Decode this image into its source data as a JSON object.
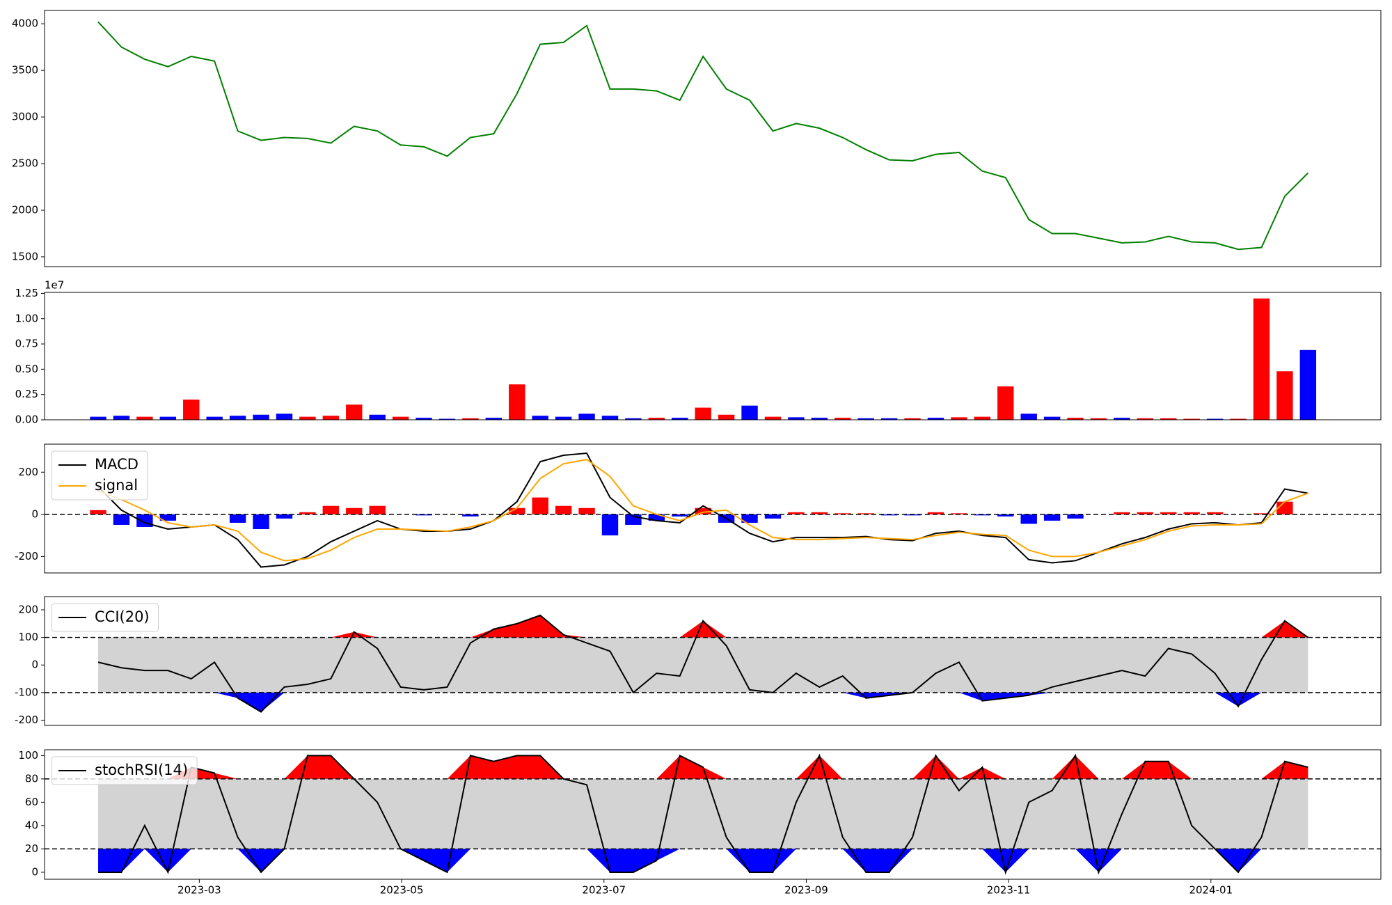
{
  "chart_data": [
    {
      "type": "line",
      "x": [
        2,
        2.23,
        2.46,
        2.69,
        2.92,
        3.15,
        3.38,
        3.61,
        3.84,
        4.07,
        4.3,
        4.53,
        4.76,
        4.99,
        5.22,
        5.45,
        5.68,
        5.91,
        6.14,
        6.37,
        6.6,
        6.83,
        7.06,
        7.29,
        7.52,
        7.75,
        7.98,
        8.21,
        8.44,
        8.67,
        8.9,
        9.13,
        9.36,
        9.59,
        9.82,
        10.05,
        10.28,
        10.51,
        10.74,
        10.97,
        11.2,
        11.43,
        11.66,
        11.89,
        12.12,
        12.35,
        12.58,
        12.81,
        13.04,
        13.27,
        13.5,
        13.73,
        13.96
      ],
      "xlim": [
        1.47,
        14.68
      ],
      "ylim": [
        1395,
        4143
      ],
      "yticks": [
        1500,
        2000,
        2500,
        3000,
        3500,
        4000
      ],
      "series": [
        {
          "color": "green",
          "values": [
            4020,
            3750,
            3620,
            3540,
            3650,
            3600,
            2850,
            2750,
            2780,
            2770,
            2720,
            2900,
            2850,
            2700,
            2680,
            2580,
            2780,
            2820,
            3250,
            3780,
            3800,
            3980,
            3300,
            3300,
            3280,
            3180,
            3650,
            3300,
            3180,
            2850,
            2930,
            2880,
            2780,
            2650,
            2540,
            2530,
            2600,
            2620,
            2420,
            2350,
            1900,
            1750,
            1750,
            1700,
            1650,
            1660,
            1720,
            1660,
            1650,
            1580,
            1600,
            2150,
            2400
          ]
        }
      ]
    },
    {
      "type": "bar",
      "x": [
        2,
        2.23,
        2.46,
        2.69,
        2.92,
        3.15,
        3.38,
        3.61,
        3.84,
        4.07,
        4.3,
        4.53,
        4.76,
        4.99,
        5.22,
        5.45,
        5.68,
        5.91,
        6.14,
        6.37,
        6.6,
        6.83,
        7.06,
        7.29,
        7.52,
        7.75,
        7.98,
        8.21,
        8.44,
        8.67,
        8.9,
        9.13,
        9.36,
        9.59,
        9.82,
        10.05,
        10.28,
        10.51,
        10.74,
        10.97,
        11.2,
        11.43,
        11.66,
        11.89,
        12.12,
        12.35,
        12.58,
        12.81,
        13.04,
        13.27,
        13.5,
        13.73,
        13.96
      ],
      "xlim": [
        1.47,
        14.68
      ],
      "ylim": [
        0,
        12600000
      ],
      "offset_label": "1e7",
      "yticks": [
        {
          "value": 0,
          "label": "0.00"
        },
        {
          "value": 2500000,
          "label": "0.25"
        },
        {
          "value": 5000000,
          "label": "0.50"
        },
        {
          "value": 7500000,
          "label": "0.75"
        },
        {
          "value": 10000000,
          "label": "1.00"
        },
        {
          "value": 12500000,
          "label": "1.25"
        }
      ],
      "values": [
        300000,
        400000,
        300000,
        300000,
        2000000,
        300000,
        400000,
        500000,
        600000,
        300000,
        400000,
        1500000,
        500000,
        300000,
        200000,
        100000,
        150000,
        200000,
        3500000,
        400000,
        300000,
        600000,
        400000,
        150000,
        200000,
        200000,
        1200000,
        500000,
        1400000,
        300000,
        250000,
        200000,
        200000,
        150000,
        150000,
        150000,
        200000,
        250000,
        300000,
        3300000,
        600000,
        300000,
        200000,
        150000,
        200000,
        150000,
        150000,
        100000,
        100000,
        100000,
        12000000,
        4800000,
        6900000
      ],
      "colors": [
        "blue",
        "blue",
        "red",
        "blue",
        "red",
        "blue",
        "blue",
        "blue",
        "blue",
        "red",
        "red",
        "red",
        "blue",
        "red",
        "blue",
        "blue",
        "red",
        "blue",
        "red",
        "blue",
        "blue",
        "blue",
        "blue",
        "blue",
        "red",
        "blue",
        "red",
        "red",
        "blue",
        "red",
        "blue",
        "blue",
        "red",
        "blue",
        "blue",
        "red",
        "blue",
        "red",
        "red",
        "red",
        "blue",
        "blue",
        "red",
        "red",
        "blue",
        "red",
        "red",
        "red",
        "blue",
        "red",
        "red",
        "red",
        "blue"
      ]
    },
    {
      "type": "macd",
      "x": [
        2,
        2.23,
        2.46,
        2.69,
        2.92,
        3.15,
        3.38,
        3.61,
        3.84,
        4.07,
        4.3,
        4.53,
        4.76,
        4.99,
        5.22,
        5.45,
        5.68,
        5.91,
        6.14,
        6.37,
        6.6,
        6.83,
        7.06,
        7.29,
        7.52,
        7.75,
        7.98,
        8.21,
        8.44,
        8.67,
        8.9,
        9.13,
        9.36,
        9.59,
        9.82,
        10.05,
        10.28,
        10.51,
        10.74,
        10.97,
        11.2,
        11.43,
        11.66,
        11.89,
        12.12,
        12.35,
        12.58,
        12.81,
        13.04,
        13.27,
        13.5,
        13.73,
        13.96
      ],
      "xlim": [
        1.47,
        14.68
      ],
      "ylim": [
        -278,
        333
      ],
      "yticks": [
        -200,
        0,
        200
      ],
      "zero_line": 0,
      "legend": "upper left",
      "series": [
        {
          "name": "MACD",
          "color": "black",
          "values": [
            130,
            20,
            -40,
            -70,
            -60,
            -50,
            -120,
            -250,
            -240,
            -200,
            -130,
            -80,
            -30,
            -70,
            -80,
            -80,
            -70,
            -30,
            60,
            250,
            280,
            290,
            80,
            -10,
            -30,
            -40,
            40,
            -20,
            -90,
            -130,
            -110,
            -110,
            -110,
            -105,
            -120,
            -125,
            -90,
            -80,
            -100,
            -110,
            -215,
            -230,
            -220,
            -180,
            -140,
            -110,
            -70,
            -45,
            -40,
            -50,
            -40,
            120,
            100
          ]
        },
        {
          "name": "signal",
          "color": "orange",
          "values": [
            110,
            70,
            20,
            -40,
            -60,
            -50,
            -80,
            -180,
            -220,
            -210,
            -170,
            -110,
            -70,
            -70,
            -75,
            -80,
            -60,
            -30,
            30,
            170,
            240,
            260,
            180,
            40,
            0,
            -30,
            10,
            20,
            -50,
            -110,
            -120,
            -120,
            -115,
            -110,
            -115,
            -120,
            -100,
            -85,
            -95,
            -100,
            -170,
            -200,
            -200,
            -180,
            -150,
            -120,
            -80,
            -55,
            -50,
            -50,
            -45,
            60,
            100
          ]
        }
      ],
      "histogram": [
        20,
        -50,
        -60,
        -30,
        0,
        0,
        -40,
        -70,
        -20,
        10,
        40,
        30,
        40,
        0,
        -5,
        0,
        -10,
        0,
        30,
        80,
        40,
        30,
        -100,
        -50,
        -30,
        -10,
        30,
        -40,
        -40,
        -20,
        10,
        10,
        5,
        5,
        -5,
        -5,
        10,
        5,
        -5,
        -10,
        -45,
        -30,
        -20,
        0,
        10,
        10,
        10,
        10,
        10,
        0,
        5,
        60,
        0
      ],
      "positive_color": "red",
      "negative_color": "blue"
    },
    {
      "type": "band",
      "x": [
        2,
        2.23,
        2.46,
        2.69,
        2.92,
        3.15,
        3.38,
        3.61,
        3.84,
        4.07,
        4.3,
        4.53,
        4.76,
        4.99,
        5.22,
        5.45,
        5.68,
        5.91,
        6.14,
        6.37,
        6.6,
        6.83,
        7.06,
        7.29,
        7.52,
        7.75,
        7.98,
        8.21,
        8.44,
        8.67,
        8.9,
        9.13,
        9.36,
        9.59,
        9.82,
        10.05,
        10.28,
        10.51,
        10.74,
        10.97,
        11.2,
        11.43,
        11.66,
        11.89,
        12.12,
        12.35,
        12.58,
        12.81,
        13.04,
        13.27,
        13.5,
        13.73,
        13.96
      ],
      "xlim": [
        1.47,
        14.68
      ],
      "ylim": [
        -219,
        248
      ],
      "yticks": [
        -200,
        -100,
        0,
        100,
        200
      ],
      "legend": "upper left",
      "band": [
        -100,
        100
      ],
      "band_color": "#d3d3d3",
      "above_color": "red",
      "below_color": "blue",
      "series": [
        {
          "name": "CCI(20)",
          "color": "black",
          "values": [
            10,
            -10,
            -20,
            -20,
            -50,
            10,
            -120,
            -170,
            -80,
            -70,
            -50,
            120,
            60,
            -80,
            -90,
            -80,
            80,
            130,
            150,
            180,
            110,
            80,
            50,
            -100,
            -30,
            -40,
            160,
            70,
            -90,
            -100,
            -30,
            -80,
            -40,
            -120,
            -110,
            -100,
            -30,
            10,
            -130,
            -120,
            -110,
            -80,
            -60,
            -40,
            -20,
            -40,
            60,
            40,
            -30,
            -150,
            20,
            160,
            100
          ]
        }
      ]
    },
    {
      "type": "band",
      "x": [
        2,
        2.23,
        2.46,
        2.69,
        2.92,
        3.15,
        3.38,
        3.61,
        3.84,
        4.07,
        4.3,
        4.53,
        4.76,
        4.99,
        5.22,
        5.45,
        5.68,
        5.91,
        6.14,
        6.37,
        6.6,
        6.83,
        7.06,
        7.29,
        7.52,
        7.75,
        7.98,
        8.21,
        8.44,
        8.67,
        8.9,
        9.13,
        9.36,
        9.59,
        9.82,
        10.05,
        10.28,
        10.51,
        10.74,
        10.97,
        11.2,
        11.43,
        11.66,
        11.89,
        12.12,
        12.35,
        12.58,
        12.81,
        13.04,
        13.27,
        13.5,
        13.73,
        13.96
      ],
      "xlim": [
        1.47,
        14.68
      ],
      "ylim": [
        -6,
        105
      ],
      "yticks": [
        0,
        20,
        40,
        60,
        80,
        100
      ],
      "legend": "upper left",
      "xticks": [
        {
          "value": 3,
          "label": "2023-03"
        },
        {
          "value": 5,
          "label": "2023-05"
        },
        {
          "value": 7,
          "label": "2023-07"
        },
        {
          "value": 9,
          "label": "2023-09"
        },
        {
          "value": 11,
          "label": "2023-11"
        },
        {
          "value": 13,
          "label": "2024-01"
        }
      ],
      "band": [
        20,
        80
      ],
      "band_color": "#d3d3d3",
      "above_color": "red",
      "below_color": "blue",
      "series": [
        {
          "name": "stochRSI(14)",
          "color": "black",
          "values": [
            0,
            0,
            40,
            0,
            90,
            85,
            30,
            0,
            20,
            100,
            100,
            80,
            60,
            20,
            10,
            0,
            100,
            95,
            100,
            100,
            80,
            75,
            0,
            0,
            10,
            100,
            90,
            30,
            0,
            0,
            60,
            100,
            30,
            0,
            0,
            30,
            100,
            70,
            90,
            0,
            60,
            70,
            100,
            0,
            50,
            95,
            95,
            40,
            20,
            0,
            30,
            95,
            90
          ]
        }
      ]
    }
  ]
}
